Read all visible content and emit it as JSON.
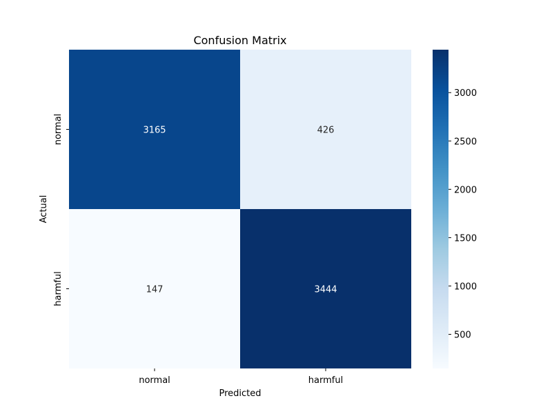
{
  "chart_data": {
    "type": "heatmap",
    "title": "Confusion Matrix",
    "xlabel": "Predicted",
    "ylabel": "Actual",
    "x_categories": [
      "normal",
      "harmful"
    ],
    "y_categories": [
      "normal",
      "harmful"
    ],
    "values": [
      [
        3165,
        426
      ],
      [
        147,
        3444
      ]
    ],
    "colorbar": {
      "min": 147,
      "max": 3444,
      "ticks": [
        500,
        1000,
        1500,
        2000,
        2500,
        3000
      ]
    },
    "colormap": [
      "#f7fbff",
      "#deebf7",
      "#c6dbef",
      "#9ecae1",
      "#6baed6",
      "#4292c6",
      "#2171b5",
      "#08519c",
      "#08306b"
    ],
    "grid": false
  }
}
